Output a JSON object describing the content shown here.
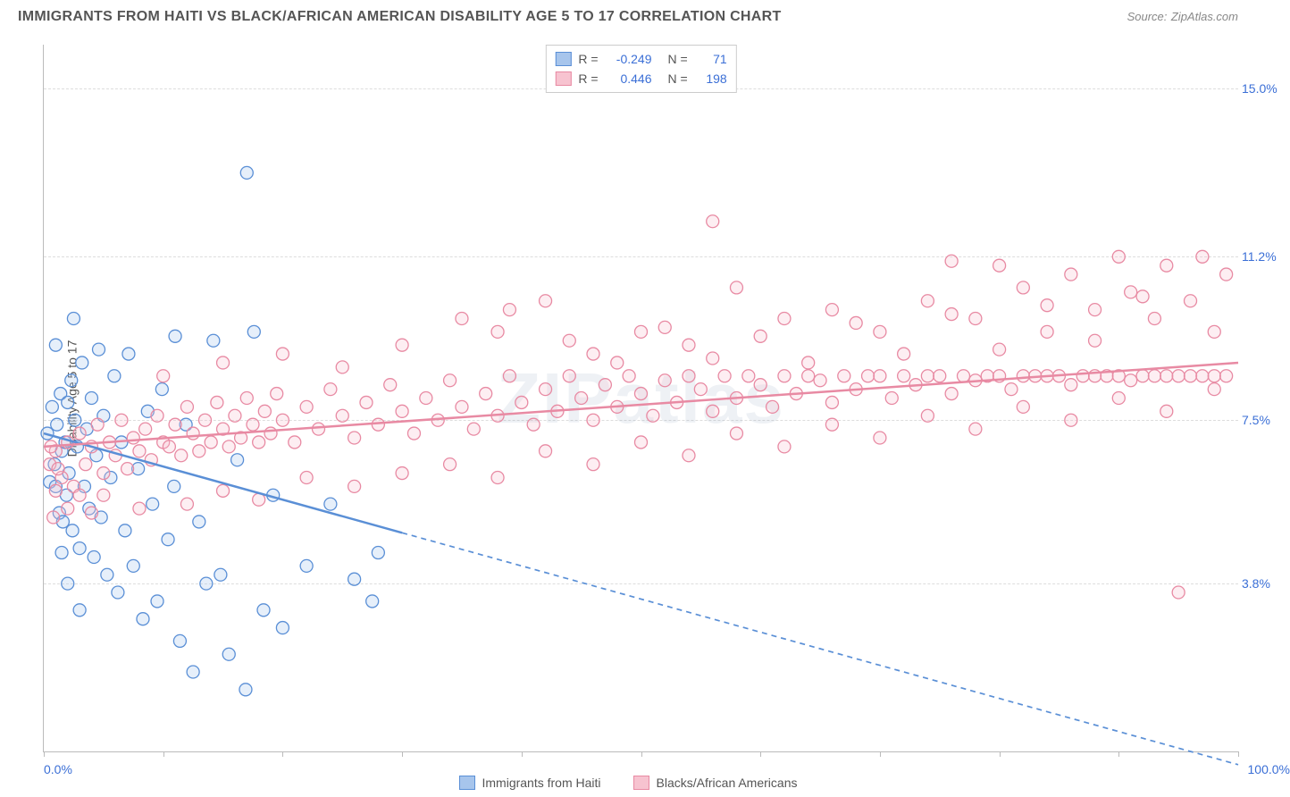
{
  "title": "IMMIGRANTS FROM HAITI VS BLACK/AFRICAN AMERICAN DISABILITY AGE 5 TO 17 CORRELATION CHART",
  "source_label": "Source:",
  "source_value": "ZipAtlas.com",
  "watermark": "ZIPatlas",
  "chart": {
    "type": "scatter",
    "background_color": "#ffffff",
    "grid_color": "#dddddd",
    "axis_color": "#bbbbbb",
    "value_color": "#3b6fd6",
    "label_fontsize": 14,
    "title_fontsize": 16,
    "y_axis_label": "Disability Age 5 to 17",
    "xlim": [
      0,
      100
    ],
    "ylim": [
      0,
      16
    ],
    "y_ticks": [
      {
        "v": 3.8,
        "label": "3.8%"
      },
      {
        "v": 7.5,
        "label": "7.5%"
      },
      {
        "v": 11.2,
        "label": "11.2%"
      },
      {
        "v": 15.0,
        "label": "15.0%"
      }
    ],
    "x_ticks": [
      0,
      10,
      20,
      30,
      40,
      50,
      60,
      70,
      80,
      90,
      100
    ],
    "x_min_label": "0.0%",
    "x_max_label": "100.0%",
    "marker_radius": 7,
    "marker_stroke_width": 1.3,
    "marker_fill_opacity": 0.28,
    "line_width": 2.5,
    "dash_pattern": "6,5"
  },
  "series": [
    {
      "id": "haiti",
      "name": "Immigrants from Haiti",
      "color_stroke": "#5a8fd6",
      "color_fill": "#a7c5ec",
      "R": "-0.249",
      "N": "71",
      "trend": {
        "x1": 0,
        "y1": 7.2,
        "x2": 100,
        "y2": -0.3,
        "solid_until_x": 30
      },
      "points": [
        [
          0.3,
          7.2
        ],
        [
          0.5,
          6.1
        ],
        [
          0.7,
          7.8
        ],
        [
          0.9,
          6.5
        ],
        [
          1.0,
          6.0
        ],
        [
          1.1,
          7.4
        ],
        [
          1.3,
          5.4
        ],
        [
          1.4,
          8.1
        ],
        [
          1.5,
          6.8
        ],
        [
          1.6,
          5.2
        ],
        [
          1.8,
          7.0
        ],
        [
          1.9,
          5.8
        ],
        [
          2.0,
          7.9
        ],
        [
          2.1,
          6.3
        ],
        [
          2.3,
          8.4
        ],
        [
          2.4,
          5.0
        ],
        [
          2.6,
          7.5
        ],
        [
          2.8,
          6.9
        ],
        [
          3.0,
          4.6
        ],
        [
          3.2,
          8.8
        ],
        [
          3.4,
          6.0
        ],
        [
          3.6,
          7.3
        ],
        [
          3.8,
          5.5
        ],
        [
          4.0,
          8.0
        ],
        [
          4.2,
          4.4
        ],
        [
          4.4,
          6.7
        ],
        [
          4.6,
          9.1
        ],
        [
          4.8,
          5.3
        ],
        [
          5.0,
          7.6
        ],
        [
          5.3,
          4.0
        ],
        [
          5.6,
          6.2
        ],
        [
          5.9,
          8.5
        ],
        [
          6.2,
          3.6
        ],
        [
          6.5,
          7.0
        ],
        [
          6.8,
          5.0
        ],
        [
          7.1,
          9.0
        ],
        [
          7.5,
          4.2
        ],
        [
          7.9,
          6.4
        ],
        [
          8.3,
          3.0
        ],
        [
          8.7,
          7.7
        ],
        [
          9.1,
          5.6
        ],
        [
          9.5,
          3.4
        ],
        [
          9.9,
          8.2
        ],
        [
          10.4,
          4.8
        ],
        [
          10.9,
          6.0
        ],
        [
          11.4,
          2.5
        ],
        [
          11.9,
          7.4
        ],
        [
          12.5,
          1.8
        ],
        [
          13.0,
          5.2
        ],
        [
          13.6,
          3.8
        ],
        [
          14.2,
          9.3
        ],
        [
          14.8,
          4.0
        ],
        [
          15.5,
          2.2
        ],
        [
          16.2,
          6.6
        ],
        [
          16.9,
          1.4
        ],
        [
          17.6,
          9.5
        ],
        [
          18.4,
          3.2
        ],
        [
          19.2,
          5.8
        ],
        [
          20.0,
          2.8
        ],
        [
          17.0,
          13.1
        ],
        [
          1.0,
          9.2
        ],
        [
          1.5,
          4.5
        ],
        [
          2.0,
          3.8
        ],
        [
          2.5,
          9.8
        ],
        [
          3.0,
          3.2
        ],
        [
          11.0,
          9.4
        ],
        [
          26.0,
          3.9
        ],
        [
          27.5,
          3.4
        ],
        [
          22.0,
          4.2
        ],
        [
          24.0,
          5.6
        ],
        [
          28.0,
          4.5
        ]
      ]
    },
    {
      "id": "black",
      "name": "Blacks/African Americans",
      "color_stroke": "#e88aa3",
      "color_fill": "#f7c3d0",
      "R": "0.446",
      "N": "198",
      "trend": {
        "x1": 0,
        "y1": 6.9,
        "x2": 100,
        "y2": 8.8,
        "solid_until_x": 100
      },
      "points": [
        [
          0.5,
          6.5
        ],
        [
          1,
          6.8
        ],
        [
          1.5,
          6.2
        ],
        [
          2,
          7.0
        ],
        [
          2.5,
          6.0
        ],
        [
          3,
          7.2
        ],
        [
          3.5,
          6.5
        ],
        [
          4,
          6.9
        ],
        [
          4.5,
          7.4
        ],
        [
          5,
          6.3
        ],
        [
          5.5,
          7.0
        ],
        [
          6,
          6.7
        ],
        [
          6.5,
          7.5
        ],
        [
          7,
          6.4
        ],
        [
          7.5,
          7.1
        ],
        [
          8,
          6.8
        ],
        [
          8.5,
          7.3
        ],
        [
          9,
          6.6
        ],
        [
          9.5,
          7.6
        ],
        [
          10,
          7.0
        ],
        [
          10.5,
          6.9
        ],
        [
          11,
          7.4
        ],
        [
          11.5,
          6.7
        ],
        [
          12,
          7.8
        ],
        [
          12.5,
          7.2
        ],
        [
          13,
          6.8
        ],
        [
          13.5,
          7.5
        ],
        [
          14,
          7.0
        ],
        [
          14.5,
          7.9
        ],
        [
          15,
          7.3
        ],
        [
          15.5,
          6.9
        ],
        [
          16,
          7.6
        ],
        [
          16.5,
          7.1
        ],
        [
          17,
          8.0
        ],
        [
          17.5,
          7.4
        ],
        [
          18,
          7.0
        ],
        [
          18.5,
          7.7
        ],
        [
          19,
          7.2
        ],
        [
          19.5,
          8.1
        ],
        [
          20,
          7.5
        ],
        [
          21,
          7.0
        ],
        [
          22,
          7.8
        ],
        [
          23,
          7.3
        ],
        [
          24,
          8.2
        ],
        [
          25,
          7.6
        ],
        [
          26,
          7.1
        ],
        [
          27,
          7.9
        ],
        [
          28,
          7.4
        ],
        [
          29,
          8.3
        ],
        [
          30,
          7.7
        ],
        [
          31,
          7.2
        ],
        [
          32,
          8.0
        ],
        [
          33,
          7.5
        ],
        [
          34,
          8.4
        ],
        [
          35,
          7.8
        ],
        [
          36,
          7.3
        ],
        [
          37,
          8.1
        ],
        [
          38,
          7.6
        ],
        [
          39,
          8.5
        ],
        [
          40,
          7.9
        ],
        [
          41,
          7.4
        ],
        [
          42,
          8.2
        ],
        [
          43,
          7.7
        ],
        [
          44,
          8.5
        ],
        [
          45,
          8.0
        ],
        [
          46,
          7.5
        ],
        [
          47,
          8.3
        ],
        [
          48,
          7.8
        ],
        [
          49,
          8.5
        ],
        [
          50,
          8.1
        ],
        [
          51,
          7.6
        ],
        [
          52,
          8.4
        ],
        [
          53,
          7.9
        ],
        [
          54,
          8.5
        ],
        [
          55,
          8.2
        ],
        [
          56,
          7.7
        ],
        [
          57,
          8.5
        ],
        [
          58,
          8.0
        ],
        [
          59,
          8.5
        ],
        [
          60,
          8.3
        ],
        [
          61,
          7.8
        ],
        [
          62,
          8.5
        ],
        [
          63,
          8.1
        ],
        [
          64,
          8.5
        ],
        [
          65,
          8.4
        ],
        [
          66,
          7.9
        ],
        [
          67,
          8.5
        ],
        [
          68,
          8.2
        ],
        [
          69,
          8.5
        ],
        [
          70,
          8.5
        ],
        [
          71,
          8.0
        ],
        [
          72,
          8.5
        ],
        [
          73,
          8.3
        ],
        [
          74,
          8.5
        ],
        [
          75,
          8.5
        ],
        [
          76,
          8.1
        ],
        [
          77,
          8.5
        ],
        [
          78,
          8.4
        ],
        [
          79,
          8.5
        ],
        [
          80,
          8.5
        ],
        [
          81,
          8.2
        ],
        [
          82,
          8.5
        ],
        [
          83,
          8.5
        ],
        [
          84,
          8.5
        ],
        [
          85,
          8.5
        ],
        [
          86,
          8.3
        ],
        [
          87,
          8.5
        ],
        [
          88,
          8.5
        ],
        [
          89,
          8.5
        ],
        [
          90,
          8.5
        ],
        [
          91,
          8.4
        ],
        [
          92,
          8.5
        ],
        [
          93,
          8.5
        ],
        [
          94,
          8.5
        ],
        [
          95,
          8.5
        ],
        [
          96,
          8.5
        ],
        [
          97,
          8.5
        ],
        [
          98,
          8.5
        ],
        [
          99,
          8.5
        ],
        [
          5,
          5.8
        ],
        [
          8,
          5.5
        ],
        [
          12,
          5.6
        ],
        [
          15,
          5.9
        ],
        [
          18,
          5.7
        ],
        [
          22,
          6.2
        ],
        [
          26,
          6.0
        ],
        [
          30,
          6.3
        ],
        [
          34,
          6.5
        ],
        [
          38,
          6.2
        ],
        [
          42,
          6.8
        ],
        [
          46,
          6.5
        ],
        [
          50,
          7.0
        ],
        [
          54,
          6.7
        ],
        [
          58,
          7.2
        ],
        [
          62,
          6.9
        ],
        [
          66,
          7.4
        ],
        [
          70,
          7.1
        ],
        [
          74,
          7.6
        ],
        [
          78,
          7.3
        ],
        [
          82,
          7.8
        ],
        [
          86,
          7.5
        ],
        [
          90,
          8.0
        ],
        [
          94,
          7.7
        ],
        [
          98,
          8.2
        ],
        [
          10,
          8.5
        ],
        [
          15,
          8.8
        ],
        [
          20,
          9.0
        ],
        [
          25,
          8.7
        ],
        [
          30,
          9.2
        ],
        [
          35,
          9.8
        ],
        [
          38,
          9.5
        ],
        [
          42,
          10.2
        ],
        [
          46,
          9.0
        ],
        [
          50,
          9.5
        ],
        [
          54,
          9.2
        ],
        [
          58,
          10.5
        ],
        [
          56,
          12.0
        ],
        [
          62,
          9.8
        ],
        [
          66,
          10.0
        ],
        [
          70,
          9.5
        ],
        [
          74,
          10.2
        ],
        [
          76,
          11.1
        ],
        [
          78,
          9.8
        ],
        [
          80,
          11.0
        ],
        [
          82,
          10.5
        ],
        [
          84,
          9.5
        ],
        [
          86,
          10.8
        ],
        [
          88,
          10.0
        ],
        [
          90,
          11.2
        ],
        [
          91,
          10.4
        ],
        [
          93,
          9.8
        ],
        [
          94,
          11.0
        ],
        [
          96,
          10.2
        ],
        [
          97,
          11.2
        ],
        [
          98,
          9.5
        ],
        [
          99,
          10.8
        ],
        [
          95,
          3.6
        ],
        [
          2,
          5.5
        ],
        [
          3,
          5.8
        ],
        [
          4,
          5.4
        ],
        [
          1,
          5.9
        ],
        [
          0.8,
          5.3
        ],
        [
          1.2,
          6.4
        ],
        [
          0.6,
          6.9
        ],
        [
          39,
          10.0
        ],
        [
          44,
          9.3
        ],
        [
          48,
          8.8
        ],
        [
          52,
          9.6
        ],
        [
          56,
          8.9
        ],
        [
          60,
          9.4
        ],
        [
          64,
          8.8
        ],
        [
          68,
          9.7
        ],
        [
          72,
          9.0
        ],
        [
          76,
          9.9
        ],
        [
          80,
          9.1
        ],
        [
          84,
          10.1
        ],
        [
          88,
          9.3
        ],
        [
          92,
          10.3
        ]
      ]
    }
  ],
  "footer_legend": [
    {
      "series_id": "haiti"
    },
    {
      "series_id": "black"
    }
  ]
}
